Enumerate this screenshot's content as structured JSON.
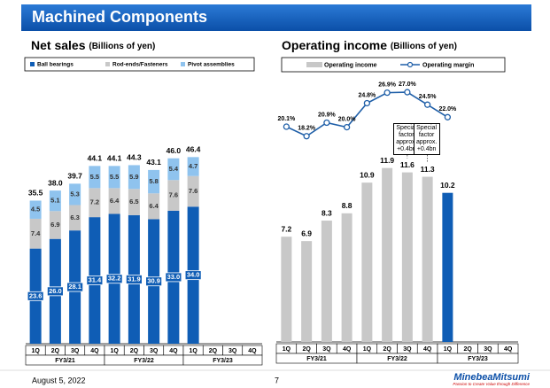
{
  "header": {
    "title": "Machined Components"
  },
  "chart_data": [
    {
      "type": "bar",
      "stacked": true,
      "title": "Net sales",
      "unit": "(Billions of yen)",
      "categories": [
        "1Q",
        "2Q",
        "3Q",
        "4Q",
        "1Q",
        "2Q",
        "3Q",
        "4Q",
        "1Q",
        "2Q",
        "3Q",
        "4Q"
      ],
      "groups": [
        "FY3/21",
        "FY3/22",
        "FY3/23"
      ],
      "series": [
        {
          "name": "Ball bearings",
          "color": "#0f5db5",
          "values": [
            23.6,
            26.0,
            28.1,
            31.4,
            32.2,
            31.9,
            30.9,
            33.0,
            34.0,
            null,
            null,
            null
          ],
          "value_labels": [
            "23.6",
            "26.0",
            "28.1",
            "31.4",
            "32.2",
            "31.9",
            "30.9",
            "33.0",
            "34.0",
            null,
            null,
            null
          ]
        },
        {
          "name": "Rod-ends/Fasteners",
          "color": "#c8c8c8",
          "values": [
            7.4,
            6.9,
            6.3,
            7.2,
            6.4,
            6.5,
            6.4,
            7.6,
            7.6,
            null,
            null,
            null
          ],
          "value_labels": [
            "7.4",
            "6.9",
            "6.3",
            "7.2",
            "6.4",
            "6.5",
            "6.4",
            "7.6",
            "7.6",
            null,
            null,
            null
          ]
        },
        {
          "name": "Pivot assemblies",
          "color": "#8fc3ee",
          "values": [
            4.5,
            5.1,
            5.3,
            5.5,
            5.5,
            5.9,
            5.8,
            5.4,
            4.7,
            null,
            null,
            null
          ],
          "value_labels": [
            "4.5",
            "5.1",
            "5.3",
            "5.5",
            "5.5",
            "5.9",
            "5.8",
            "5.4",
            "4.7",
            null,
            null,
            null
          ]
        }
      ],
      "totals": {
        "values": [
          35.5,
          38.0,
          39.7,
          44.1,
          44.1,
          44.3,
          43.1,
          46.0,
          46.4,
          null,
          null,
          null
        ],
        "value_labels": [
          "35.5",
          "38.0",
          "39.7",
          "44.1",
          "44.1",
          "44.3",
          "43.1",
          "46.0",
          "46.4",
          null,
          null,
          null
        ]
      }
    },
    {
      "type": "combo",
      "title": "Operating income",
      "unit": "(Billions of yen)",
      "categories": [
        "1Q",
        "2Q",
        "3Q",
        "4Q",
        "1Q",
        "2Q",
        "3Q",
        "4Q",
        "1Q",
        "2Q",
        "3Q",
        "4Q"
      ],
      "groups": [
        "FY3/21",
        "FY3/22",
        "FY3/23"
      ],
      "series": [
        {
          "name": "Operating income",
          "color": "#c8c8c8",
          "latest_color": "#0f5db5",
          "values": [
            7.2,
            6.9,
            8.3,
            8.8,
            10.9,
            11.9,
            11.6,
            11.3,
            10.2,
            null,
            null,
            null
          ]
        },
        {
          "name": "Operating margin",
          "color": "#1f5fa8",
          "axis": "y2",
          "values": [
            20.1,
            18.2,
            20.9,
            20.0,
            24.8,
            26.9,
            27.0,
            24.5,
            22.0,
            null,
            null,
            null
          ],
          "value_labels": [
            "20.1%",
            "18.2%",
            "20.9%",
            "20.0%",
            "24.8%",
            "26.9%",
            "27.0%",
            "24.5%",
            "22.0%",
            null,
            null,
            null
          ]
        }
      ],
      "annotations": [
        null,
        null,
        null,
        null,
        null,
        null,
        "Special factor approx. +0.4bn",
        "Special factor approx. +0.4bn",
        null,
        null,
        null,
        null
      ]
    }
  ],
  "footer": {
    "date": "August 5, 2022",
    "page": 7,
    "logo": "MinebeaMitsumi",
    "tagline": "Passion to Create Value through Difference"
  }
}
